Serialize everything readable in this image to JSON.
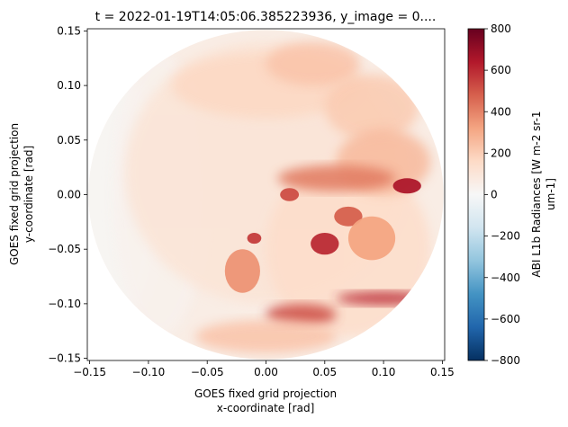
{
  "chart_data": {
    "type": "heatmap",
    "title": "t = 2022-01-19T14:05:06.385223936, y_image = 0....",
    "xlabel": [
      "GOES fixed grid projection",
      "x-coordinate [rad]"
    ],
    "ylabel": [
      "GOES fixed grid projection",
      "y-coordinate [rad]"
    ],
    "xlim": [
      -0.152,
      0.152
    ],
    "ylim": [
      -0.152,
      0.152
    ],
    "x_ticks": [
      -0.15,
      -0.1,
      -0.05,
      0.0,
      0.05,
      0.1,
      0.15
    ],
    "x_tick_labels": [
      "−0.15",
      "−0.10",
      "−0.05",
      "0.00",
      "0.05",
      "0.10",
      "0.15"
    ],
    "y_ticks": [
      -0.15,
      -0.1,
      -0.05,
      0.0,
      0.05,
      0.1,
      0.15
    ],
    "y_tick_labels": [
      "−0.15",
      "−0.10",
      "−0.05",
      "0.00",
      "0.05",
      "0.10",
      "0.15"
    ],
    "grid": false,
    "disk_radius": 0.151,
    "colorbar": {
      "label": [
        "ABI L1b Radiances [W m-2 sr-1",
        "um-1]"
      ],
      "colormap": "RdBu_r",
      "min": -800,
      "max": 800,
      "ticks": [
        800,
        600,
        400,
        200,
        0,
        -200,
        -400,
        -600,
        -800
      ],
      "tick_labels": [
        "800",
        "600",
        "400",
        "200",
        "0",
        "−200",
        "−400",
        "−600",
        "−800"
      ]
    },
    "regions": [
      {
        "x": -0.13,
        "y": 0.0,
        "rx": 0.04,
        "ry": 0.12,
        "value": 8
      },
      {
        "x": -0.09,
        "y": 0.0,
        "rx": 0.04,
        "ry": 0.13,
        "value": 35
      },
      {
        "x": 0.0,
        "y": 0.02,
        "rx": 0.12,
        "ry": 0.12,
        "value": 110
      },
      {
        "x": 0.07,
        "y": -0.05,
        "rx": 0.07,
        "ry": 0.08,
        "value": 150
      },
      {
        "x": 0.0,
        "y": 0.1,
        "rx": 0.08,
        "ry": 0.03,
        "value": 170
      },
      {
        "x": 0.04,
        "y": 0.12,
        "rx": 0.04,
        "ry": 0.02,
        "value": 230
      },
      {
        "x": 0.09,
        "y": 0.08,
        "rx": 0.04,
        "ry": 0.03,
        "value": 210
      },
      {
        "x": 0.1,
        "y": 0.03,
        "rx": 0.04,
        "ry": 0.03,
        "value": 260
      },
      {
        "x": 0.06,
        "y": 0.015,
        "rx": 0.05,
        "ry": 0.012,
        "value": 420
      },
      {
        "x": 0.12,
        "y": 0.008,
        "rx": 0.012,
        "ry": 0.007,
        "value": 650
      },
      {
        "x": 0.02,
        "y": 0.0,
        "rx": 0.008,
        "ry": 0.006,
        "value": 520
      },
      {
        "x": -0.01,
        "y": -0.04,
        "rx": 0.006,
        "ry": 0.005,
        "value": 560
      },
      {
        "x": 0.05,
        "y": -0.045,
        "rx": 0.012,
        "ry": 0.01,
        "value": 600
      },
      {
        "x": 0.07,
        "y": -0.02,
        "rx": 0.012,
        "ry": 0.009,
        "value": 480
      },
      {
        "x": 0.1,
        "y": -0.095,
        "rx": 0.04,
        "ry": 0.006,
        "value": 600
      },
      {
        "x": 0.03,
        "y": -0.11,
        "rx": 0.03,
        "ry": 0.01,
        "value": 520
      },
      {
        "x": -0.02,
        "y": -0.07,
        "rx": 0.015,
        "ry": 0.02,
        "value": 360
      },
      {
        "x": 0.09,
        "y": -0.04,
        "rx": 0.02,
        "ry": 0.02,
        "value": 320
      },
      {
        "x": 0.0,
        "y": -0.13,
        "rx": 0.06,
        "ry": 0.015,
        "value": 230
      }
    ]
  }
}
